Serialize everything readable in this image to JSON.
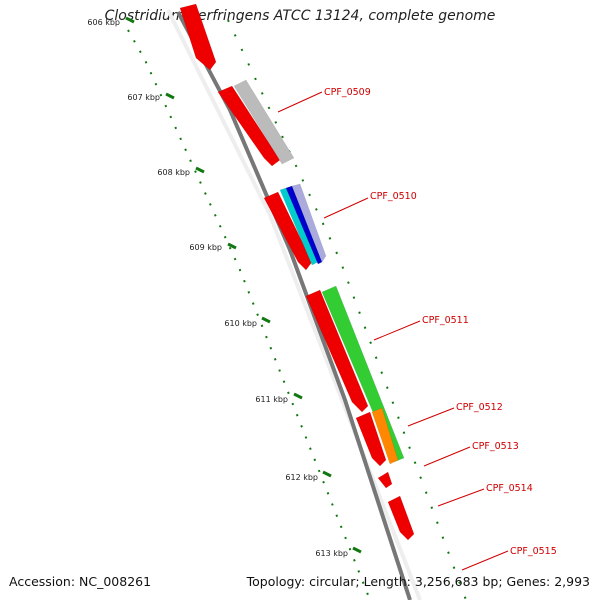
{
  "title": "Clostridium perfringens ATCC 13124, complete genome",
  "accession": "Accession: NC_008261",
  "topology": "Topology: circular; Length: 3,256,683 bp; Genes: 2,993",
  "ticks": [
    {
      "label": "606 kbp"
    },
    {
      "label": "607 kbp"
    },
    {
      "label": "608 kbp"
    },
    {
      "label": "609 kbp"
    },
    {
      "label": "610 kbp"
    },
    {
      "label": "611 kbp"
    },
    {
      "label": "612 kbp"
    },
    {
      "label": "613 kbp"
    }
  ],
  "genes": [
    {
      "name": "CPF_0509"
    },
    {
      "name": "CPF_0510"
    },
    {
      "name": "CPF_0511"
    },
    {
      "name": "CPF_0512"
    },
    {
      "name": "CPF_0513"
    },
    {
      "name": "CPF_0514"
    },
    {
      "name": "CPF_0515"
    }
  ],
  "colors": {
    "cds": "#ee0000",
    "backbone": "#777777",
    "gray_feature": "#bbbbbb",
    "green_feature": "#33cc33",
    "orange_feature": "#ff8800",
    "blue_feature": "#0000cc",
    "cyan_feature": "#00cccc",
    "lavender_feature": "#aaaadd",
    "tick": "#117711",
    "label": "#d00000"
  }
}
